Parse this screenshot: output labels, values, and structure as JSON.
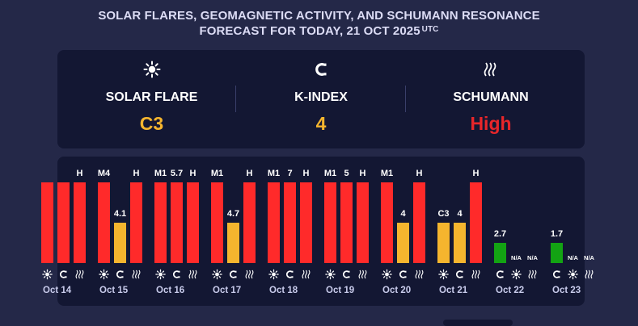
{
  "title": {
    "line1": "SOLAR FLARES, GEOMAGNETIC ACTIVITY, AND SCHUMANN RESONANCE",
    "line2": "FORECAST FOR TODAY, 21 OCT 2025",
    "tz": "UTC"
  },
  "summary": {
    "items": [
      {
        "label": "SOLAR FLARE",
        "value": "C3",
        "icon": "sun-icon",
        "color": "#f5b52e"
      },
      {
        "label": "K-INDEX",
        "value": "4",
        "icon": "magnet-icon",
        "color": "#f5b52e"
      },
      {
        "label": "SCHUMANN",
        "value": "High",
        "icon": "waves-icon",
        "color": "#e8262a"
      }
    ]
  },
  "colors": {
    "red": "#ff2a2a",
    "yellow": "#f5b52e",
    "green": "#13a313"
  },
  "chart_data": {
    "type": "bar",
    "title": "",
    "series": [
      "solar-flare",
      "k-index",
      "schumann"
    ],
    "days": [
      {
        "date": "Oct 14",
        "bars": [
          {
            "label": "",
            "level": 1.0,
            "color": "red"
          },
          {
            "label": "",
            "level": 1.0,
            "color": "red"
          },
          {
            "label": "H",
            "level": 1.0,
            "color": "red"
          }
        ],
        "icons": [
          "sun",
          "magnet",
          "waves"
        ]
      },
      {
        "date": "Oct 15",
        "bars": [
          {
            "label": "M4",
            "level": 1.0,
            "color": "red"
          },
          {
            "label": "4.1",
            "level": 0.5,
            "color": "yellow"
          },
          {
            "label": "H",
            "level": 1.0,
            "color": "red"
          }
        ],
        "icons": [
          "sun",
          "magnet",
          "waves"
        ]
      },
      {
        "date": "Oct 16",
        "bars": [
          {
            "label": "M1",
            "level": 1.0,
            "color": "red"
          },
          {
            "label": "5.7",
            "level": 1.0,
            "color": "red"
          },
          {
            "label": "H",
            "level": 1.0,
            "color": "red"
          }
        ],
        "icons": [
          "sun",
          "magnet",
          "waves"
        ]
      },
      {
        "date": "Oct 17",
        "bars": [
          {
            "label": "M1",
            "level": 1.0,
            "color": "red"
          },
          {
            "label": "4.7",
            "level": 0.5,
            "color": "yellow"
          },
          {
            "label": "H",
            "level": 1.0,
            "color": "red"
          }
        ],
        "icons": [
          "sun",
          "magnet",
          "waves"
        ]
      },
      {
        "date": "Oct 18",
        "bars": [
          {
            "label": "M1",
            "level": 1.0,
            "color": "red"
          },
          {
            "label": "7",
            "level": 1.0,
            "color": "red"
          },
          {
            "label": "H",
            "level": 1.0,
            "color": "red"
          }
        ],
        "icons": [
          "sun",
          "magnet",
          "waves"
        ]
      },
      {
        "date": "Oct 19",
        "bars": [
          {
            "label": "M1",
            "level": 1.0,
            "color": "red"
          },
          {
            "label": "5",
            "level": 1.0,
            "color": "red"
          },
          {
            "label": "H",
            "level": 1.0,
            "color": "red"
          }
        ],
        "icons": [
          "sun",
          "magnet",
          "waves"
        ]
      },
      {
        "date": "Oct 20",
        "bars": [
          {
            "label": "M1",
            "level": 1.0,
            "color": "red"
          },
          {
            "label": "4",
            "level": 0.5,
            "color": "yellow"
          },
          {
            "label": "H",
            "level": 1.0,
            "color": "red"
          }
        ],
        "icons": [
          "sun",
          "magnet",
          "waves"
        ]
      },
      {
        "date": "Oct 21",
        "bars": [
          {
            "label": "C3",
            "level": 0.5,
            "color": "yellow"
          },
          {
            "label": "4",
            "level": 0.5,
            "color": "yellow"
          },
          {
            "label": "H",
            "level": 1.0,
            "color": "red"
          }
        ],
        "icons": [
          "sun",
          "magnet",
          "waves"
        ]
      },
      {
        "date": "Oct 22",
        "bars": [
          {
            "label": "2.7",
            "level": 0.25,
            "color": "green"
          },
          {
            "label": "N/A",
            "level": 0,
            "color": "none"
          },
          {
            "label": "N/A",
            "level": 0,
            "color": "none"
          }
        ],
        "icons": [
          "magnet",
          "sun",
          "waves"
        ]
      },
      {
        "date": "Oct 23",
        "bars": [
          {
            "label": "1.7",
            "level": 0.25,
            "color": "green"
          },
          {
            "label": "N/A",
            "level": 0,
            "color": "none"
          },
          {
            "label": "N/A",
            "level": 0,
            "color": "none"
          }
        ],
        "icons": [
          "magnet",
          "sun",
          "waves"
        ]
      }
    ]
  }
}
